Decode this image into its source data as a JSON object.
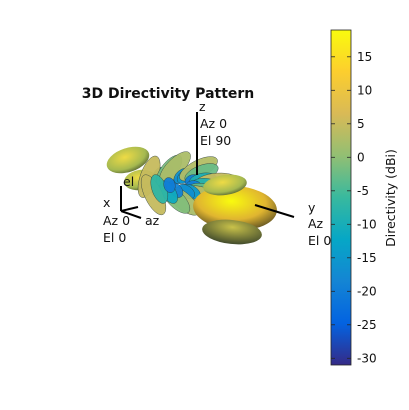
{
  "chart_data": {
    "type": "3d-radiation-pattern",
    "title": "3D Directivity Pattern",
    "colorbar": {
      "label": "Directivity (dBi)",
      "range": [
        -31,
        19
      ],
      "ticks": [
        15,
        10,
        5,
        0,
        -5,
        -10,
        -15,
        -20,
        -25,
        -30
      ],
      "colormap": "parula",
      "colormap_stops": [
        "#352a87",
        "#0363e1",
        "#1485d4",
        "#06a7c6",
        "#38b99e",
        "#92bf73",
        "#d9ba56",
        "#fcce2e",
        "#f9fb0e"
      ]
    },
    "axes_labels": {
      "z": {
        "name": "z",
        "az": "Az 0",
        "el": "El 90"
      },
      "x": {
        "name": "x",
        "az": "Az 0",
        "el": "El 0"
      },
      "y": {
        "name": "y",
        "az": "Az",
        "el": "El 0"
      },
      "az_arrow": "az",
      "el_arrow": "el"
    },
    "pattern": {
      "main_lobe_directivity_dBi": 19,
      "back_lobe_directivity_dBi": 12,
      "sidelobe_directivity_range_dBi": [
        -20,
        5
      ]
    }
  }
}
